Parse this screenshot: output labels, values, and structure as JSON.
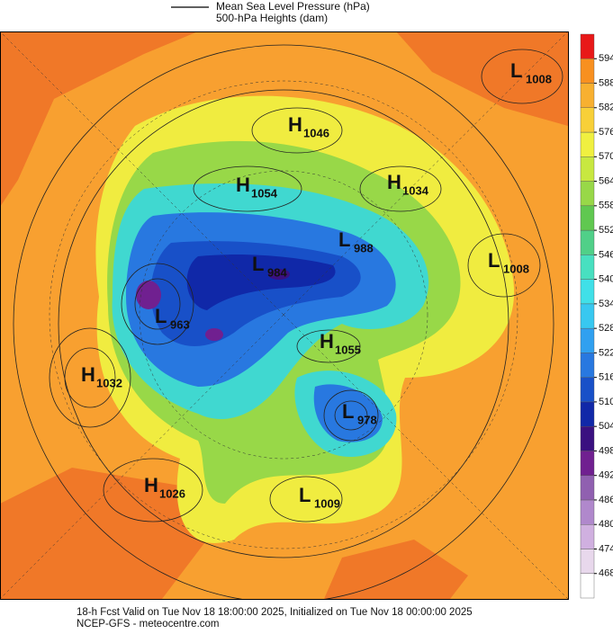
{
  "header": {
    "line1": "Mean Sea Level Pressure (hPa)",
    "line2": "500-hPa Heights (dam)"
  },
  "map": {
    "centers": [
      {
        "letter": "L",
        "value": "1008"
      },
      {
        "letter": "H",
        "value": "1046"
      },
      {
        "letter": "H",
        "value": "1054"
      },
      {
        "letter": "H",
        "value": "1034"
      },
      {
        "letter": "L",
        "value": "988"
      },
      {
        "letter": "L",
        "value": "1008"
      },
      {
        "letter": "L",
        "value": "984"
      },
      {
        "letter": "L",
        "value": "963"
      },
      {
        "letter": "H",
        "value": "1055"
      },
      {
        "letter": "H",
        "value": "1032"
      },
      {
        "letter": "L",
        "value": "978"
      },
      {
        "letter": "H",
        "value": "1026"
      },
      {
        "letter": "L",
        "value": "1009"
      }
    ],
    "colorbar": {
      "ticks": [
        468,
        474,
        480,
        486,
        492,
        498,
        504,
        510,
        516,
        522,
        528,
        534,
        540,
        546,
        552,
        558,
        564,
        570,
        576,
        582,
        588,
        594
      ],
      "colors": [
        "#ffffff",
        "#e8d8ec",
        "#d0b0e0",
        "#b088cc",
        "#9060b0",
        "#702090",
        "#3a1080",
        "#1028a8",
        "#1850c8",
        "#2878e0",
        "#30a0f0",
        "#38c8f0",
        "#40e0e8",
        "#48e0c0",
        "#50d088",
        "#60c850",
        "#98d848",
        "#c8e840",
        "#f0f040",
        "#f8d038",
        "#f8b030",
        "#f89020",
        "#e81818"
      ]
    }
  },
  "footer": {
    "line1": "18-h Fcst Valid on Tue Nov 18 18:00:00 2025, Initialized on Tue Nov 18 00:00:00 2025",
    "line2": "NCEP-GFS  -  meteocentre.com"
  }
}
